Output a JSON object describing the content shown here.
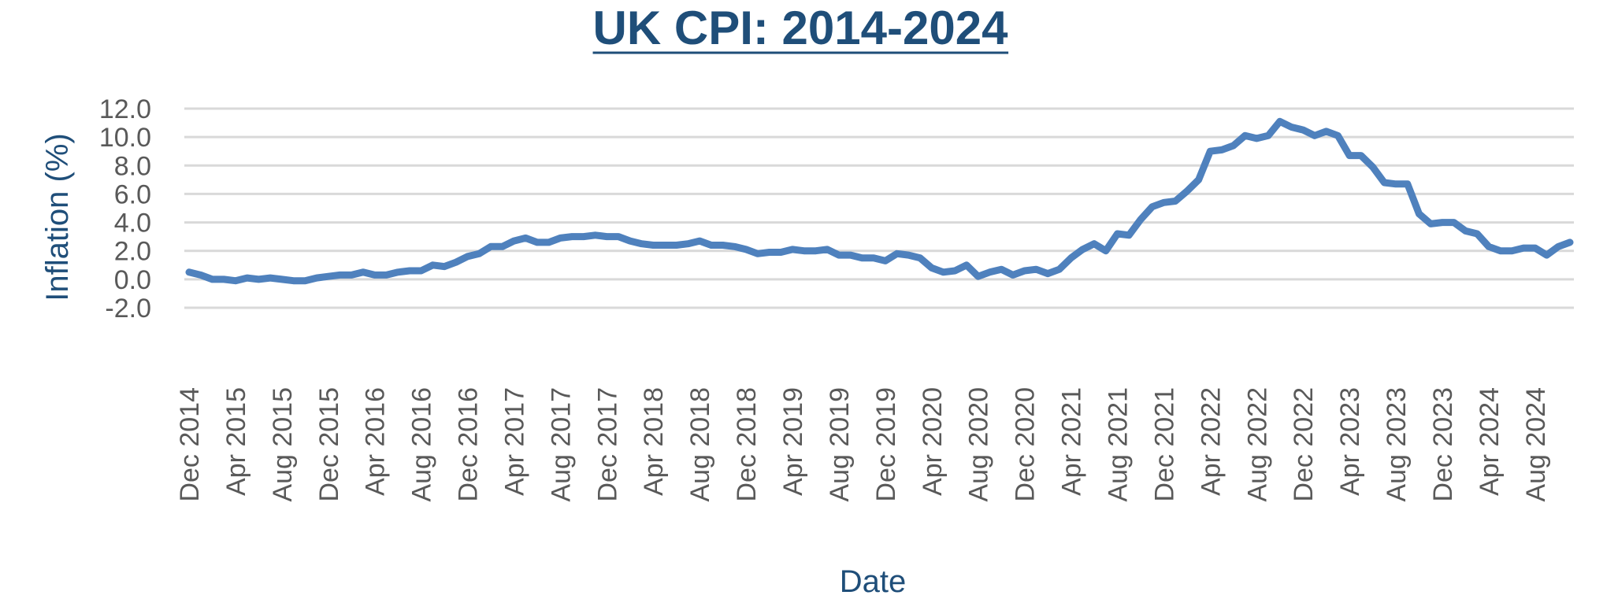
{
  "chart_data": {
    "type": "line",
    "title": "UK CPI: 2014-2024",
    "xlabel": "Date",
    "ylabel": "Inflation (%)",
    "ylim": [
      -2.0,
      12.0
    ],
    "yticks": [
      "12.0",
      "10.0",
      "8.0",
      "6.0",
      "4.0",
      "2.0",
      "0.0",
      "-2.0"
    ],
    "xtick_labels": [
      "Dec 2014",
      "Apr 2015",
      "Aug 2015",
      "Dec 2015",
      "Apr 2016",
      "Aug 2016",
      "Dec 2016",
      "Apr 2017",
      "Aug 2017",
      "Dec 2017",
      "Apr 2018",
      "Aug 2018",
      "Dec 2018",
      "Apr 2019",
      "Aug 2019",
      "Dec 2019",
      "Apr 2020",
      "Aug 2020",
      "Dec 2020",
      "Apr 2021",
      "Aug 2021",
      "Dec 2021",
      "Apr 2022",
      "Aug 2022",
      "Dec 2022",
      "Apr 2023",
      "Aug 2023",
      "Dec 2023",
      "Apr 2024",
      "Aug 2024"
    ],
    "grid": true,
    "legend": "none",
    "line_color": "#4f81bd",
    "title_color": "#1f4e79",
    "series": [
      {
        "x": [
          "Dec 2014",
          "Jan 2015",
          "Feb 2015",
          "Mar 2015",
          "Apr 2015",
          "May 2015",
          "Jun 2015",
          "Jul 2015",
          "Aug 2015",
          "Sep 2015",
          "Oct 2015",
          "Nov 2015",
          "Dec 2015",
          "Jan 2016",
          "Feb 2016",
          "Mar 2016",
          "Apr 2016",
          "May 2016",
          "Jun 2016",
          "Jul 2016",
          "Aug 2016",
          "Sep 2016",
          "Oct 2016",
          "Nov 2016",
          "Dec 2016",
          "Jan 2017",
          "Feb 2017",
          "Mar 2017",
          "Apr 2017",
          "May 2017",
          "Jun 2017",
          "Jul 2017",
          "Aug 2017",
          "Sep 2017",
          "Oct 2017",
          "Nov 2017",
          "Dec 2017",
          "Jan 2018",
          "Feb 2018",
          "Mar 2018",
          "Apr 2018",
          "May 2018",
          "Jun 2018",
          "Jul 2018",
          "Aug 2018",
          "Sep 2018",
          "Oct 2018",
          "Nov 2018",
          "Dec 2018",
          "Jan 2019",
          "Feb 2019",
          "Mar 2019",
          "Apr 2019",
          "May 2019",
          "Jun 2019",
          "Jul 2019",
          "Aug 2019",
          "Sep 2019",
          "Oct 2019",
          "Nov 2019",
          "Dec 2019",
          "Jan 2020",
          "Feb 2020",
          "Mar 2020",
          "Apr 2020",
          "May 2020",
          "Jun 2020",
          "Jul 2020",
          "Aug 2020",
          "Sep 2020",
          "Oct 2020",
          "Nov 2020",
          "Dec 2020",
          "Jan 2021",
          "Feb 2021",
          "Mar 2021",
          "Apr 2021",
          "May 2021",
          "Jun 2021",
          "Jul 2021",
          "Aug 2021",
          "Sep 2021",
          "Oct 2021",
          "Nov 2021",
          "Dec 2021",
          "Jan 2022",
          "Feb 2022",
          "Mar 2022",
          "Apr 2022",
          "May 2022",
          "Jun 2022",
          "Jul 2022",
          "Aug 2022",
          "Sep 2022",
          "Oct 2022",
          "Nov 2022",
          "Dec 2022",
          "Jan 2023",
          "Feb 2023",
          "Mar 2023",
          "Apr 2023",
          "May 2023",
          "Jun 2023",
          "Jul 2023",
          "Aug 2023",
          "Sep 2023",
          "Oct 2023",
          "Nov 2023",
          "Dec 2023",
          "Jan 2024",
          "Feb 2024",
          "Mar 2024",
          "Apr 2024",
          "May 2024",
          "Jun 2024",
          "Jul 2024",
          "Aug 2024",
          "Sep 2024",
          "Oct 2024",
          "Nov 2024"
        ],
        "values": [
          0.5,
          0.3,
          0.0,
          0.0,
          -0.1,
          0.1,
          0.0,
          0.1,
          0.0,
          -0.1,
          -0.1,
          0.1,
          0.2,
          0.3,
          0.3,
          0.5,
          0.3,
          0.3,
          0.5,
          0.6,
          0.6,
          1.0,
          0.9,
          1.2,
          1.6,
          1.8,
          2.3,
          2.3,
          2.7,
          2.9,
          2.6,
          2.6,
          2.9,
          3.0,
          3.0,
          3.1,
          3.0,
          3.0,
          2.7,
          2.5,
          2.4,
          2.4,
          2.4,
          2.5,
          2.7,
          2.4,
          2.4,
          2.3,
          2.1,
          1.8,
          1.9,
          1.9,
          2.1,
          2.0,
          2.0,
          2.1,
          1.7,
          1.7,
          1.5,
          1.5,
          1.3,
          1.8,
          1.7,
          1.5,
          0.8,
          0.5,
          0.6,
          1.0,
          0.2,
          0.5,
          0.7,
          0.3,
          0.6,
          0.7,
          0.4,
          0.7,
          1.5,
          2.1,
          2.5,
          2.0,
          3.2,
          3.1,
          4.2,
          5.1,
          5.4,
          5.5,
          6.2,
          7.0,
          9.0,
          9.1,
          9.4,
          10.1,
          9.9,
          10.1,
          11.1,
          10.7,
          10.5,
          10.1,
          10.4,
          10.1,
          8.7,
          8.7,
          7.9,
          6.8,
          6.7,
          6.7,
          4.6,
          3.9,
          4.0,
          4.0,
          3.4,
          3.2,
          2.3,
          2.0,
          2.0,
          2.2,
          2.2,
          1.7,
          2.3,
          2.6
        ]
      }
    ]
  }
}
